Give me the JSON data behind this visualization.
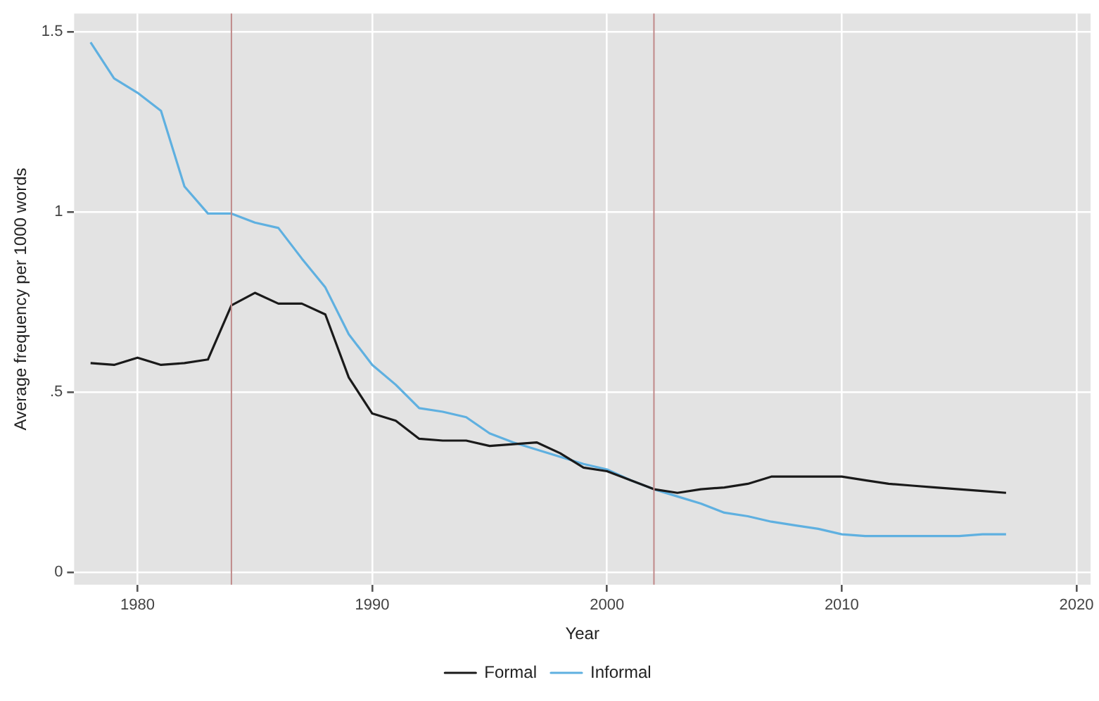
{
  "chart_data": {
    "type": "line",
    "xlabel": "Year",
    "ylabel": "Average frequency per 1000 words",
    "x": [
      1978,
      1979,
      1980,
      1981,
      1982,
      1983,
      1984,
      1985,
      1986,
      1987,
      1988,
      1989,
      1990,
      1991,
      1992,
      1993,
      1994,
      1995,
      1996,
      1997,
      1998,
      1999,
      2000,
      2001,
      2002,
      2003,
      2004,
      2005,
      2006,
      2007,
      2008,
      2009,
      2010,
      2011,
      2012,
      2013,
      2014,
      2015,
      2016,
      2017
    ],
    "series": [
      {
        "name": "Formal",
        "color": "#1a1a1a",
        "values": [
          0.58,
          0.575,
          0.595,
          0.575,
          0.58,
          0.59,
          0.74,
          0.775,
          0.745,
          0.745,
          0.715,
          0.54,
          0.44,
          0.42,
          0.37,
          0.365,
          0.365,
          0.35,
          0.355,
          0.36,
          0.33,
          0.29,
          0.28,
          0.255,
          0.23,
          0.22,
          0.23,
          0.235,
          0.245,
          0.265,
          0.265,
          0.265,
          0.265,
          0.255,
          0.245,
          0.24,
          0.235,
          0.23,
          0.225,
          0.22
        ]
      },
      {
        "name": "Informal",
        "color": "#5fb0e0",
        "values": [
          1.47,
          1.37,
          1.33,
          1.28,
          1.07,
          0.995,
          0.995,
          0.97,
          0.955,
          0.87,
          0.79,
          0.66,
          0.575,
          0.52,
          0.455,
          0.445,
          0.43,
          0.385,
          0.36,
          0.34,
          0.32,
          0.3,
          0.285,
          0.255,
          0.23,
          0.21,
          0.19,
          0.165,
          0.155,
          0.14,
          0.13,
          0.12,
          0.105,
          0.1,
          0.1,
          0.1,
          0.1,
          0.1,
          0.105,
          0.105
        ]
      }
    ],
    "xlim": [
      1977.3,
      2020.6
    ],
    "xticks": [
      1980,
      1990,
      2000,
      2010,
      2020
    ],
    "ylim": [
      -0.035,
      1.55
    ],
    "yticks": [
      {
        "value": 0,
        "label": "0"
      },
      {
        "value": 0.5,
        "label": ".5"
      },
      {
        "value": 1,
        "label": "1"
      },
      {
        "value": 1.5,
        "label": "1.5"
      }
    ],
    "ref_lines": [
      {
        "axis": "x",
        "value": 1984,
        "color": "#c08a8a"
      },
      {
        "axis": "x",
        "value": 2002,
        "color": "#c08a8a"
      }
    ],
    "grid": true,
    "legend": "bottom",
    "marker": "none",
    "line_style": "solid"
  }
}
